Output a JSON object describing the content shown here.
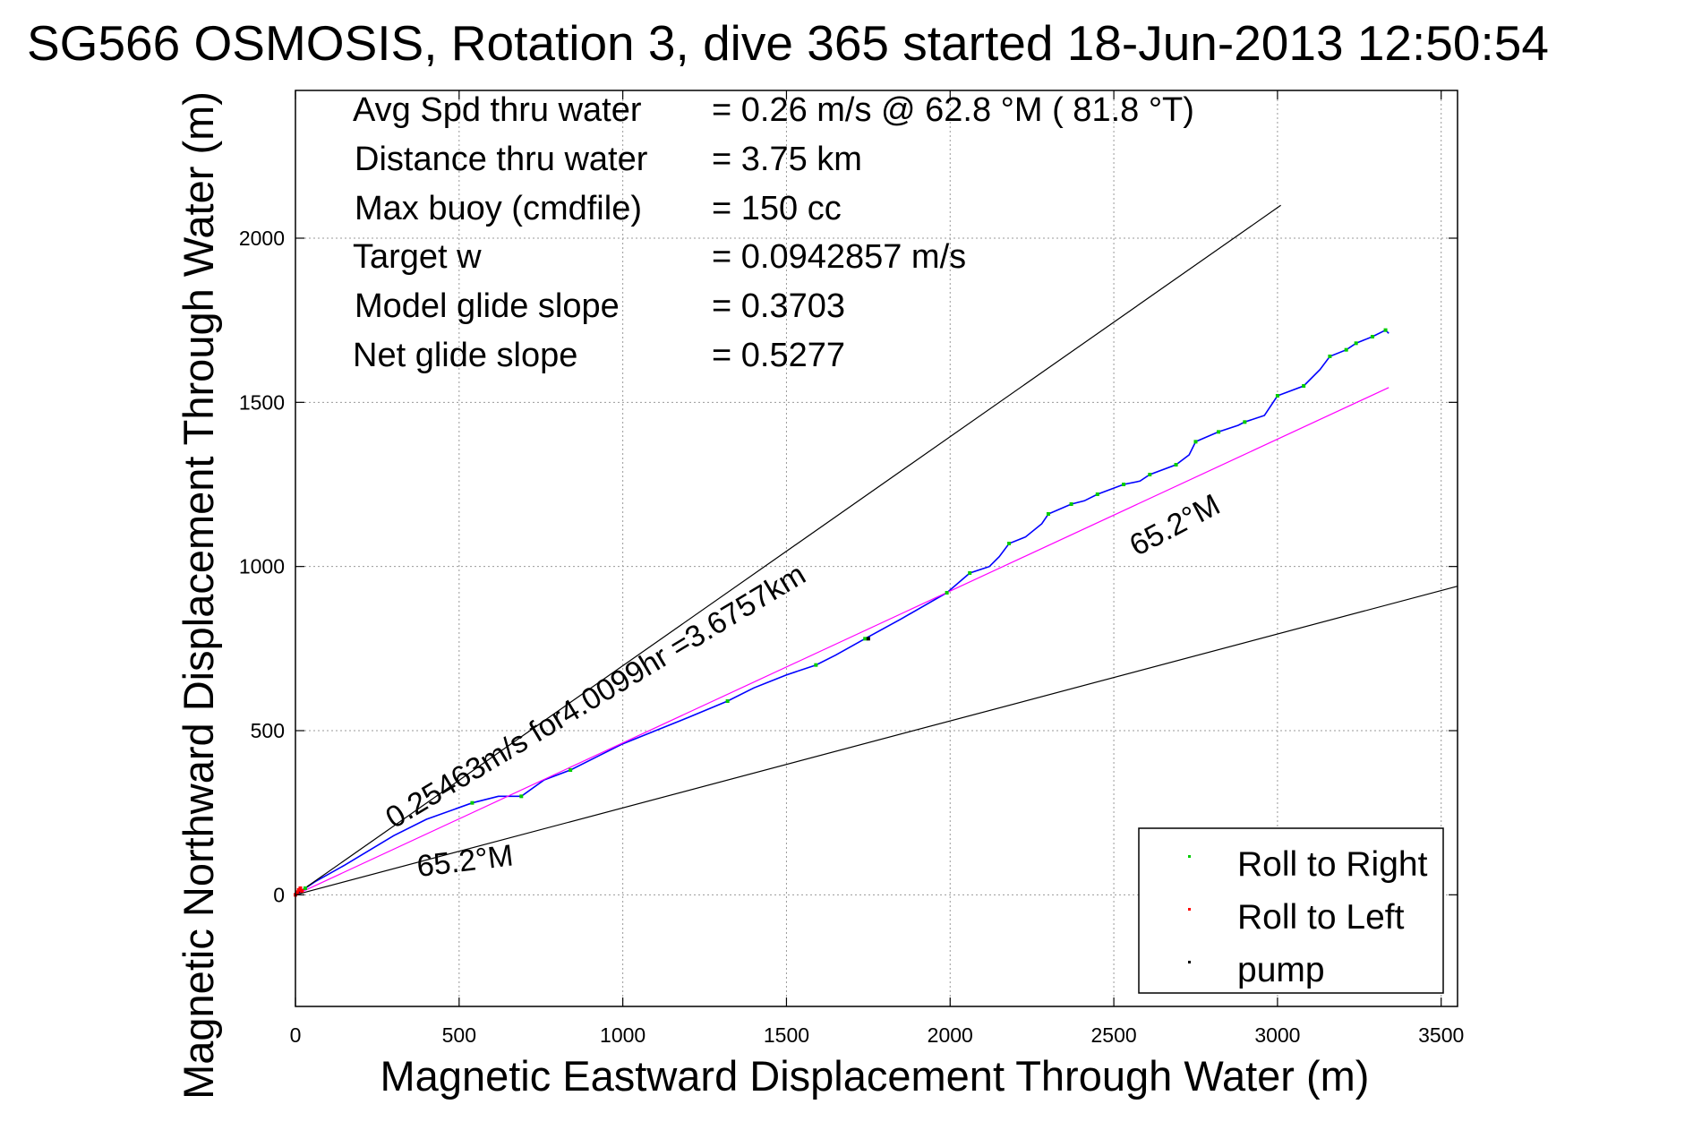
{
  "chart_data": {
    "type": "line",
    "title": "SG566 OSMOSIS, Rotation 3, dive 365 started 18-Jun-2013 12:50:54",
    "xlabel": "Magnetic Eastward Displacement Through Water (m)",
    "ylabel": "Magnetic Northward Displacement Through Water (m)",
    "xlim": [
      0,
      3550
    ],
    "ylim": [
      -340,
      2450
    ],
    "x_ticks": [
      "0",
      "500",
      "1000",
      "1500",
      "2000",
      "2500",
      "3000",
      "3500"
    ],
    "y_ticks": [
      "0",
      "500",
      "1000",
      "1500",
      "2000"
    ],
    "grid": true,
    "legend_placement": "bottom-right",
    "stats": [
      {
        "label": "Avg Spd thru water",
        "value": "=  0.26 m/s @  62.8 °M ( 81.8 °T)"
      },
      {
        "label": "Distance thru water",
        "value": "=  3.75 km"
      },
      {
        "label": "Max buoy (cmdfile)",
        "value": "= 150 cc"
      },
      {
        "label": "Target w",
        "value": "= 0.0942857 m/s"
      },
      {
        "label": "Model glide slope",
        "value": "= 0.3703"
      },
      {
        "label": "Net glide slope",
        "value": "= 0.5277"
      }
    ],
    "series": [
      {
        "name": "Roll to Right",
        "kind": "points",
        "color": "#00cc00",
        "x": [
          30,
          540,
          690,
          840,
          1320,
          1590,
          1740,
          1990,
          2060,
          2180,
          2300,
          2370,
          2450,
          2530,
          2610,
          2690,
          2750,
          2820,
          2900,
          3000,
          3080,
          3160,
          3210,
          3240,
          3290,
          3330
        ],
        "y": [
          20,
          280,
          300,
          380,
          590,
          700,
          780,
          920,
          980,
          1070,
          1160,
          1190,
          1220,
          1250,
          1280,
          1310,
          1380,
          1410,
          1440,
          1520,
          1550,
          1640,
          1660,
          1680,
          1700,
          1720
        ]
      },
      {
        "name": "Roll to Left",
        "kind": "points",
        "color": "#ff0000",
        "x": [
          0,
          5,
          10,
          15,
          20
        ],
        "y": [
          0,
          8,
          15,
          20,
          12
        ]
      },
      {
        "name": "pump",
        "kind": "points",
        "color": "#000000",
        "x": [
          1750
        ],
        "y": [
          780
        ]
      },
      {
        "kind": "line",
        "color": "#0000ff",
        "x": [
          0,
          60,
          150,
          300,
          400,
          540,
          620,
          690,
          760,
          840,
          920,
          1000,
          1100,
          1200,
          1320,
          1400,
          1500,
          1590,
          1650,
          1740,
          1850,
          1990,
          2060,
          2120,
          2150,
          2180,
          2230,
          2280,
          2300,
          2370,
          2410,
          2450,
          2530,
          2580,
          2610,
          2690,
          2730,
          2750,
          2820,
          2880,
          2900,
          2960,
          3000,
          3080,
          3130,
          3160,
          3210,
          3240,
          3290,
          3330,
          3340
        ],
        "y": [
          0,
          40,
          90,
          180,
          230,
          280,
          300,
          300,
          350,
          380,
          420,
          460,
          500,
          540,
          590,
          630,
          670,
          700,
          730,
          780,
          840,
          920,
          980,
          1000,
          1030,
          1070,
          1090,
          1130,
          1160,
          1190,
          1200,
          1220,
          1250,
          1260,
          1280,
          1310,
          1340,
          1380,
          1410,
          1430,
          1440,
          1460,
          1520,
          1550,
          1600,
          1640,
          1660,
          1680,
          1700,
          1720,
          1710
        ]
      },
      {
        "kind": "line",
        "color": "#ff00ff",
        "x": [
          0,
          3340
        ],
        "y": [
          0,
          1545
        ]
      },
      {
        "kind": "line",
        "color": "#000000",
        "x": [
          0,
          3010
        ],
        "y": [
          0,
          2100
        ]
      },
      {
        "kind": "line",
        "color": "#000000",
        "x": [
          0,
          3550
        ],
        "y": [
          0,
          940
        ]
      }
    ],
    "annotations": [
      {
        "text": "0.25463m/s for4.0099hr =3.6757km",
        "x": 300,
        "y": 200
      },
      {
        "text": "65.2°M",
        "x": 375,
        "y": 55
      },
      {
        "text": "65.2°M",
        "x": 2570,
        "y": 1030
      }
    ]
  }
}
